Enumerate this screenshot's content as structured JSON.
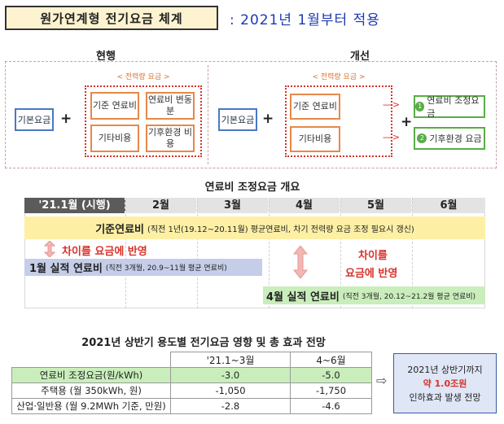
{
  "header": {
    "title": "원가연계형 전기요금 체계",
    "subtitle": ": 2021년 1월부터 적용"
  },
  "scheme": {
    "current": {
      "heading": "현행",
      "base_fee": "기본요금",
      "plus": "+",
      "energy_label": "< 전력량 요금 >",
      "items": [
        "기준 연료비",
        "연료비 변동분",
        "기타비용",
        "기후환경 비용"
      ]
    },
    "improved": {
      "heading": "개선",
      "base_fee": "기본요금",
      "plus": "+",
      "energy_label": "< 전력량 요금 >",
      "items": [
        "기준 연료비",
        "기타비용"
      ],
      "arrow": "---->",
      "plus2": "+",
      "separate": [
        {
          "num": "1",
          "label": "연료비 조정요금"
        },
        {
          "num": "2",
          "label": "기후환경 요금"
        }
      ]
    }
  },
  "timeline": {
    "heading": "연료비 조정요금 개요",
    "months": [
      "'21.1월 (시행)",
      "2월",
      "3월",
      "4월",
      "5월",
      "6월"
    ],
    "base_fuel": {
      "label": "기준연료비",
      "note": "(직전 1년(19.12~20.11월) 평균연료비, 차기 전력량 요금 조정 필요시 갱신)"
    },
    "diff_note_1": "차이를 요금에 반영",
    "diff_note_2a": "차이를",
    "diff_note_2b": "요금에 반영",
    "jan_actual": {
      "label": "1월 실적 연료비",
      "note": "(직전 3개월, 20.9~11월 평균 연료비)"
    },
    "apr_actual": {
      "label": "4월 실적 연료비",
      "note": "(직전 3개월, 20.12~21.2월 평균 연료비)"
    }
  },
  "effect": {
    "heading": "2021년 상반기 용도별 전기요금 영향 및 총 효과 전망",
    "columns": [
      "",
      "'21.1~3월",
      "4~6월"
    ],
    "rows": [
      {
        "label": "연료비 조정요금(원/kWh)",
        "q1": "-3.0",
        "q2": "-5.0"
      },
      {
        "label": "주택용 (월 350kWh, 원)",
        "q1": "-1,050",
        "q2": "-1,750"
      },
      {
        "label": "산업·일반용 (월 9.2MWh 기준, 만원)",
        "q1": "-2.8",
        "q2": "-4.6"
      }
    ],
    "arrow": "⇨",
    "summary": {
      "line1": "2021년 상반기까지",
      "line2": "약 1.0조원",
      "line3": "인하효과 발생 전망"
    }
  },
  "colors": {
    "accent_blue": "#1d39b4",
    "orange": "#e5894a",
    "red": "#d9312a",
    "green": "#59ad47"
  }
}
